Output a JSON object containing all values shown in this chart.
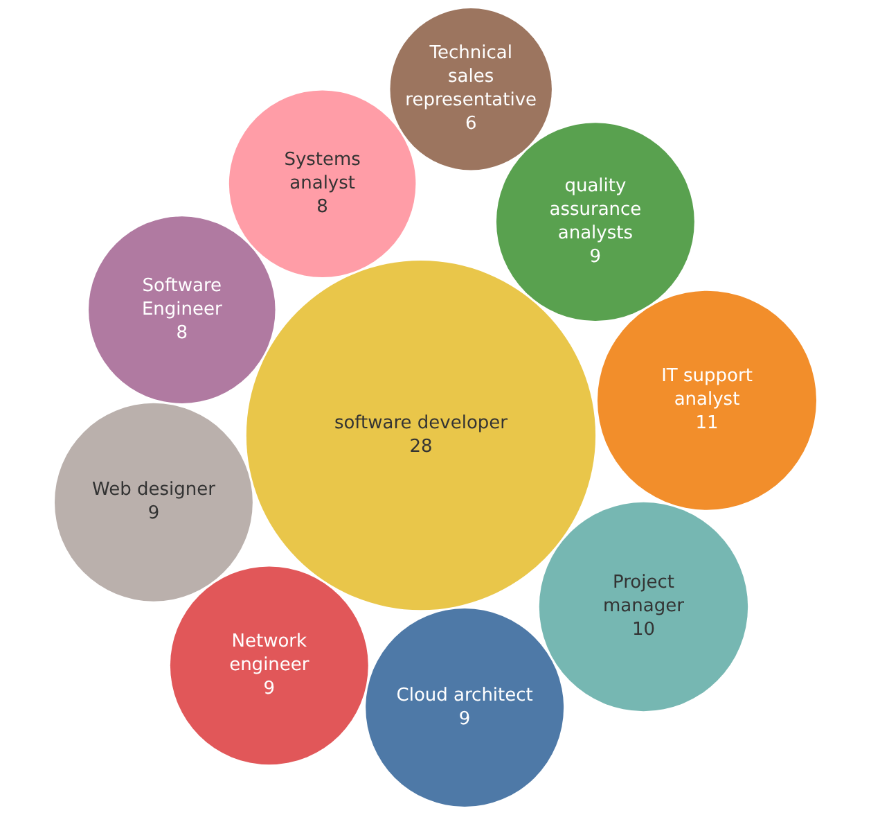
{
  "chart_data": {
    "type": "other",
    "categories": [
      "software developer",
      "Software Engineer",
      "Systems analyst",
      "quality assurance analysts",
      "Cloud architect",
      "IT support analyst",
      "Technical sales representative",
      "Project manager",
      "Network engineer",
      "Web designer"
    ],
    "values": [
      28,
      8,
      8,
      9,
      9,
      11,
      6,
      10,
      9,
      9
    ],
    "colors": [
      "#e9c64a",
      "#b07aa1",
      "#ff9da7",
      "#59a14f",
      "#4e79a7",
      "#f28e2b",
      "#9c755f",
      "#76b7b2",
      "#e15759",
      "#bab0ac"
    ],
    "data_labels": true
  }
}
